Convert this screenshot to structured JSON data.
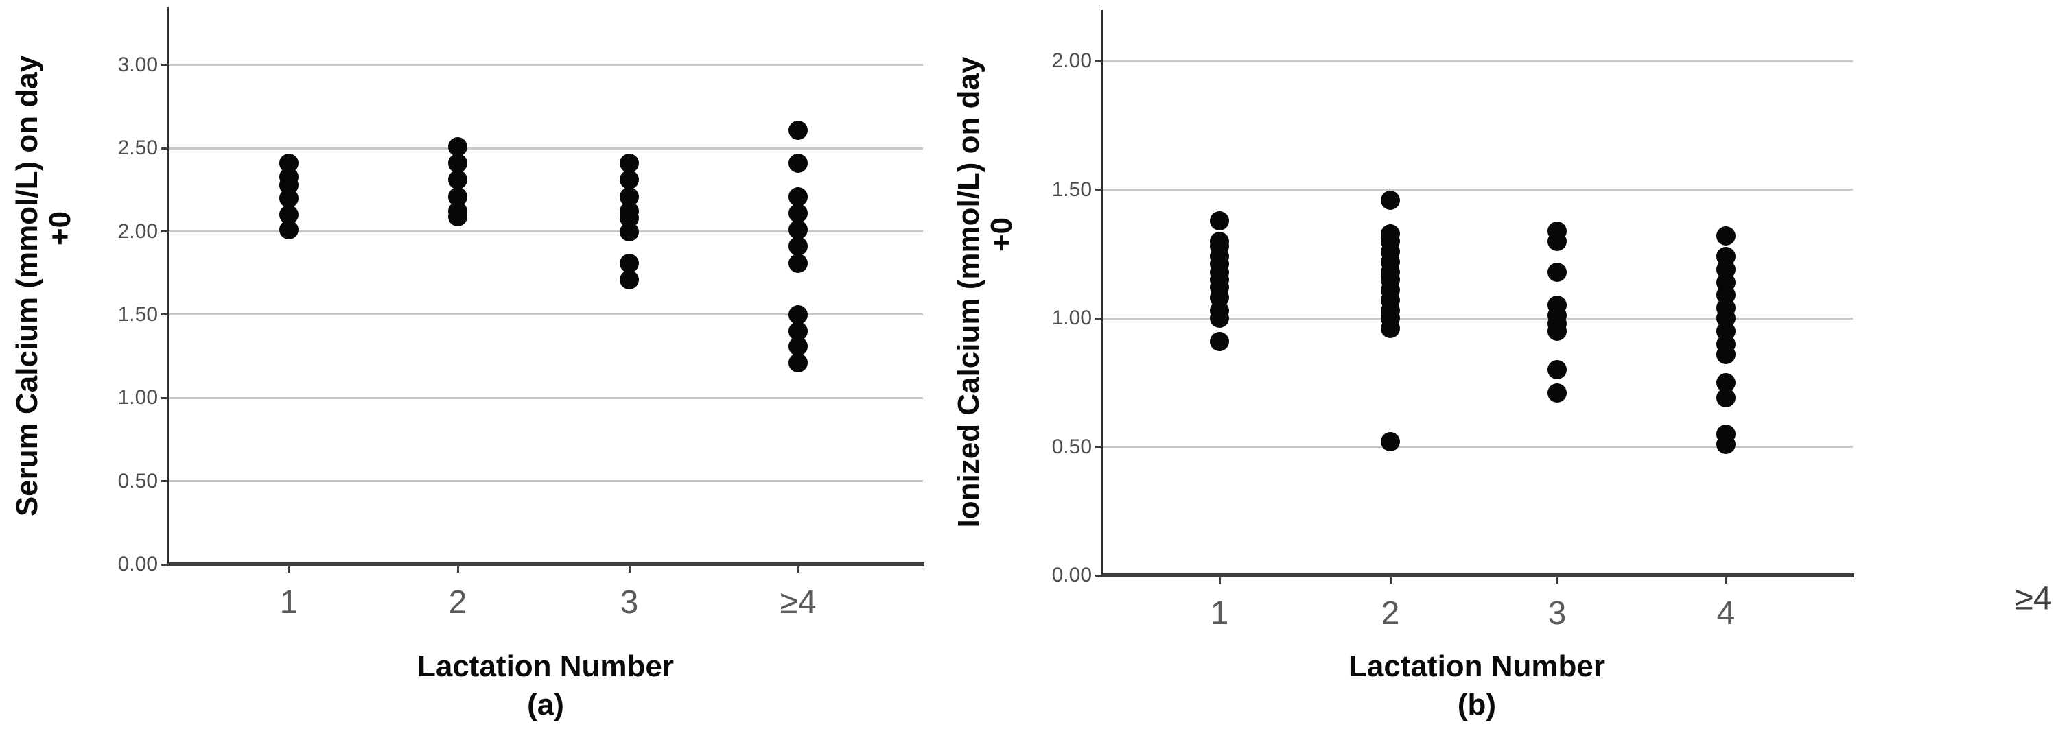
{
  "panels": [
    {
      "panel_label": "(a)",
      "y_axis_title": "Serum Calcium (mmol/L) on day",
      "y_axis_title_line2": "+0",
      "x_axis_title": "Lactation Number",
      "y_tick_labels": [
        "3.00",
        "2.50",
        "2.00",
        "1.50",
        "1.00",
        "0.50",
        "0.00"
      ],
      "x_tick_labels": [
        "1",
        "2",
        "3",
        "≥4"
      ]
    },
    {
      "panel_label": "(b)",
      "y_axis_title": "Ionized Calcium (mmol/L) on day",
      "y_axis_title_line2": "+0",
      "x_axis_title": "Lactation Number",
      "y_tick_labels": [
        "2.00",
        "1.50",
        "1.00",
        "0.50",
        "0.00"
      ],
      "x_tick_labels": [
        "1",
        "2",
        "3",
        "4"
      ]
    }
  ],
  "stray_x_tick_label": "≥4",
  "colors": {
    "dot": "#070707",
    "gridline": "#c8c8c8",
    "y_axis_line": "#2f2f2f",
    "x_axis_line": "#3d3d3d",
    "tick_label": "#4e4e4e",
    "axis_title": "#0a0a0a"
  },
  "chart_data": [
    {
      "type": "scatter",
      "title": "(a)",
      "xlabel": "Lactation Number",
      "ylabel": "Serum Calcium (mmol/L) on day +0",
      "categories": [
        "1",
        "2",
        "3",
        "≥4"
      ],
      "y_ticks": [
        0.0,
        0.5,
        1.0,
        1.5,
        2.0,
        2.5,
        3.0
      ],
      "ylim": [
        0.0,
        3.35
      ],
      "grid": true,
      "legend": false,
      "values_by_category": [
        [
          2.41,
          2.33,
          2.28,
          2.2,
          2.1,
          2.01
        ],
        [
          2.51,
          2.41,
          2.31,
          2.21,
          2.12,
          2.09
        ],
        [
          2.41,
          2.31,
          2.21,
          2.12,
          2.08,
          2.0,
          1.81,
          1.71
        ],
        [
          2.61,
          2.41,
          2.21,
          2.11,
          2.01,
          1.91,
          1.81,
          1.5,
          1.4,
          1.31,
          1.21
        ]
      ]
    },
    {
      "type": "scatter",
      "title": "(b)",
      "xlabel": "Lactation Number",
      "ylabel": "Ionized Calcium (mmol/L) on day +0",
      "categories": [
        "1",
        "2",
        "3",
        "4"
      ],
      "y_ticks": [
        0.0,
        0.5,
        1.0,
        1.5,
        2.0
      ],
      "ylim": [
        0.0,
        2.2
      ],
      "grid": true,
      "legend": false,
      "values_by_category": [
        [
          1.38,
          1.3,
          1.28,
          1.24,
          1.21,
          1.18,
          1.15,
          1.12,
          1.08,
          1.03,
          1.0,
          0.91
        ],
        [
          1.46,
          1.33,
          1.3,
          1.26,
          1.22,
          1.18,
          1.15,
          1.11,
          1.07,
          1.03,
          1.0,
          0.96,
          0.52
        ],
        [
          1.34,
          1.3,
          1.18,
          1.05,
          1.01,
          0.98,
          0.95,
          0.8,
          0.71
        ],
        [
          1.32,
          1.24,
          1.19,
          1.14,
          1.09,
          1.04,
          1.0,
          0.95,
          0.9,
          0.86,
          0.75,
          0.69,
          0.55,
          0.51
        ]
      ]
    }
  ]
}
